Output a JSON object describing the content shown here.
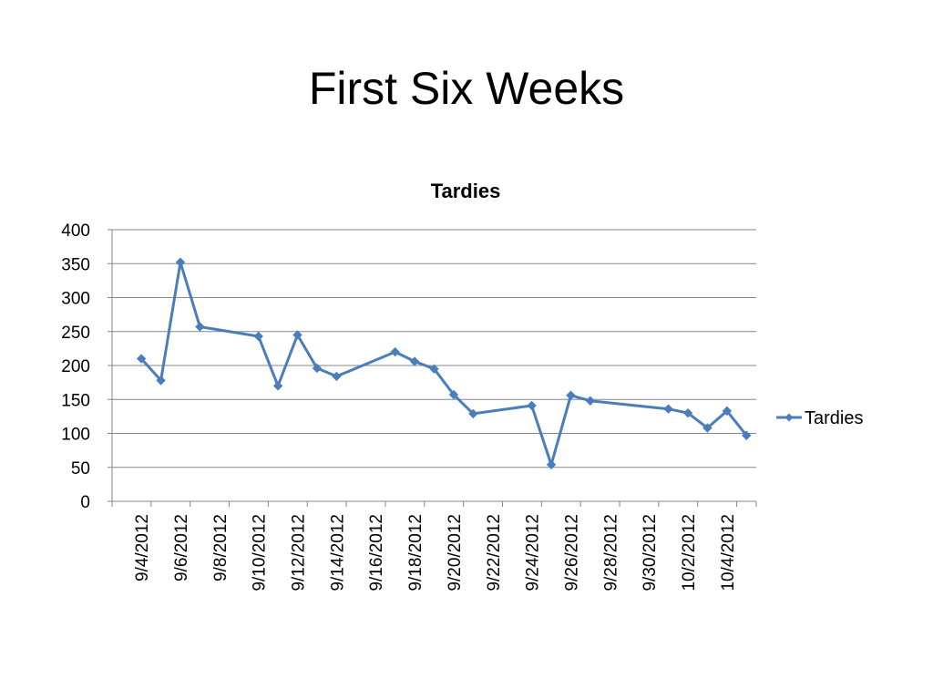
{
  "slide": {
    "title": "First Six Weeks"
  },
  "chart_data": {
    "type": "line",
    "title": "Tardies",
    "xlabel": "",
    "ylabel": "",
    "x_axis": "date",
    "x_range": [
      "2012-09-03",
      "2012-10-06"
    ],
    "ylim": [
      0,
      400
    ],
    "y_ticks": [
      0,
      50,
      100,
      150,
      200,
      250,
      300,
      350,
      400
    ],
    "x_tick_labels": [
      "9/4/2012",
      "9/6/2012",
      "9/8/2012",
      "9/10/2012",
      "9/12/2012",
      "9/14/2012",
      "9/16/2012",
      "9/18/2012",
      "9/20/2012",
      "9/22/2012",
      "9/24/2012",
      "9/26/2012",
      "9/28/2012",
      "9/30/2012",
      "10/2/2012",
      "10/4/2012"
    ],
    "grid": "horizontal",
    "legend": "right",
    "series": [
      {
        "name": "Tardies",
        "color": "#4a7ebb",
        "marker": "diamond",
        "points": [
          {
            "x": "2012-09-04",
            "y": 210
          },
          {
            "x": "2012-09-05",
            "y": 178
          },
          {
            "x": "2012-09-06",
            "y": 352
          },
          {
            "x": "2012-09-07",
            "y": 257
          },
          {
            "x": "2012-09-10",
            "y": 243
          },
          {
            "x": "2012-09-11",
            "y": 170
          },
          {
            "x": "2012-09-12",
            "y": 245
          },
          {
            "x": "2012-09-13",
            "y": 196
          },
          {
            "x": "2012-09-14",
            "y": 184
          },
          {
            "x": "2012-09-17",
            "y": 220
          },
          {
            "x": "2012-09-18",
            "y": 206
          },
          {
            "x": "2012-09-19",
            "y": 195
          },
          {
            "x": "2012-09-20",
            "y": 157
          },
          {
            "x": "2012-09-21",
            "y": 129
          },
          {
            "x": "2012-09-24",
            "y": 141
          },
          {
            "x": "2012-09-25",
            "y": 54
          },
          {
            "x": "2012-09-26",
            "y": 156
          },
          {
            "x": "2012-09-27",
            "y": 148
          },
          {
            "x": "2012-10-01",
            "y": 136
          },
          {
            "x": "2012-10-02",
            "y": 130
          },
          {
            "x": "2012-10-03",
            "y": 108
          },
          {
            "x": "2012-10-04",
            "y": 133
          },
          {
            "x": "2012-10-05",
            "y": 97
          }
        ]
      }
    ]
  }
}
